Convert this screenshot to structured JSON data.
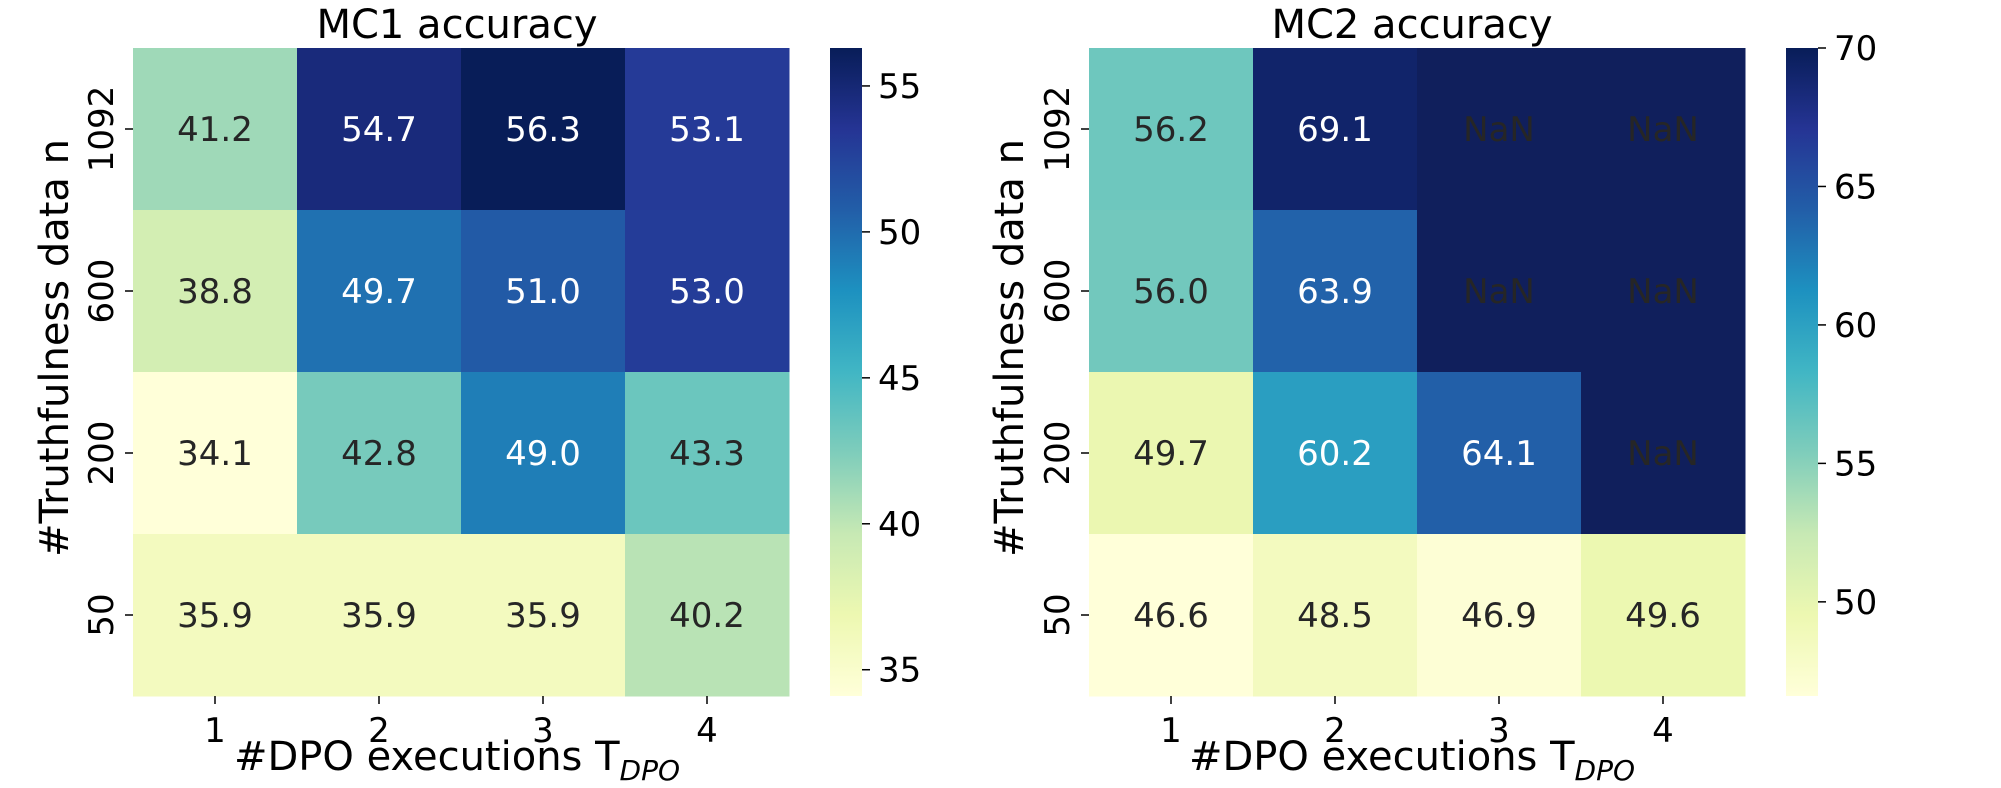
{
  "colors": {
    "colormap": [
      "#ffffd9",
      "#edf8b1",
      "#c7e9b4",
      "#7fcdbb",
      "#41b6c4",
      "#1d91c0",
      "#225ea8",
      "#253494",
      "#081d58"
    ],
    "nan_fill": "#101f5c",
    "text_dark": "#262626",
    "text_light": "#ffffff"
  },
  "chart_data": [
    {
      "type": "heatmap",
      "title": "MC1 accuracy",
      "xlabel": "#DPO executions T",
      "xlabel_subscript": "DPO",
      "ylabel": "#Truthfulness data n",
      "x_categories": [
        "1",
        "2",
        "3",
        "4"
      ],
      "y_categories": [
        "1092",
        "600",
        "200",
        "50"
      ],
      "values": [
        [
          41.2,
          54.7,
          56.3,
          53.1
        ],
        [
          38.8,
          49.7,
          51.0,
          53.0
        ],
        [
          34.1,
          42.8,
          49.0,
          43.3
        ],
        [
          35.9,
          35.9,
          35.9,
          40.2
        ]
      ],
      "cell_labels": [
        [
          "41.2",
          "54.7",
          "56.3",
          "53.1"
        ],
        [
          "38.8",
          "49.7",
          "51.0",
          "53.0"
        ],
        [
          "34.1",
          "42.8",
          "49.0",
          "43.3"
        ],
        [
          "35.9",
          "35.9",
          "35.9",
          "40.2"
        ]
      ],
      "vmin": 34.1,
      "vmax": 56.3,
      "colorbar_ticks": [
        35,
        40,
        45,
        50,
        55
      ]
    },
    {
      "type": "heatmap",
      "title": "MC2 accuracy",
      "xlabel": "#DPO executions T",
      "xlabel_subscript": "DPO",
      "ylabel": "#Truthfulness data n",
      "x_categories": [
        "1",
        "2",
        "3",
        "4"
      ],
      "y_categories": [
        "1092",
        "600",
        "200",
        "50"
      ],
      "values": [
        [
          56.2,
          69.1,
          null,
          null
        ],
        [
          56.0,
          63.9,
          null,
          null
        ],
        [
          49.7,
          60.2,
          64.1,
          null
        ],
        [
          46.6,
          48.5,
          46.9,
          49.6
        ]
      ],
      "cell_labels": [
        [
          "56.2",
          "69.1",
          "NaN",
          "NaN"
        ],
        [
          "56.0",
          "63.9",
          "NaN",
          "NaN"
        ],
        [
          "49.7",
          "60.2",
          "64.1",
          "NaN"
        ],
        [
          "46.6",
          "48.5",
          "46.9",
          "49.6"
        ]
      ],
      "vmin": 46.6,
      "vmax": 70,
      "colorbar_ticks": [
        50,
        55,
        60,
        65,
        70
      ]
    }
  ]
}
